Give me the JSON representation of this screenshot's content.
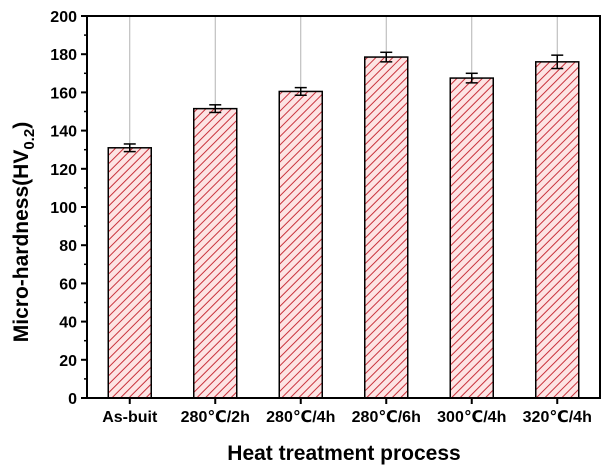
{
  "chart_data": {
    "type": "bar",
    "categories": [
      "As-buit",
      "280℃/2h",
      "280℃/4h",
      "280℃/6h",
      "300℃/4h",
      "320℃/4h"
    ],
    "values": [
      131,
      151.5,
      160.5,
      178.5,
      167.5,
      176
    ],
    "errors": [
      2,
      2,
      2,
      2.5,
      2.5,
      3.5
    ],
    "title": "",
    "xlabel": "Heat treatment process",
    "ylabel": {
      "main": "Micro-hardness(HV",
      "sub": "0.2",
      "close": ")"
    },
    "ylim": [
      0,
      200
    ],
    "yticks": [
      "0",
      "20",
      "40",
      "60",
      "80",
      "100",
      "120",
      "140",
      "160",
      "180",
      "200"
    ],
    "grid": "vertical",
    "legend": "none",
    "colors": {
      "bar_fill": "#fde4e4",
      "bar_hatch": "#c8323c",
      "bar_edge": "#000000",
      "grid": "#b4b4b4",
      "axis": "#000000"
    }
  }
}
